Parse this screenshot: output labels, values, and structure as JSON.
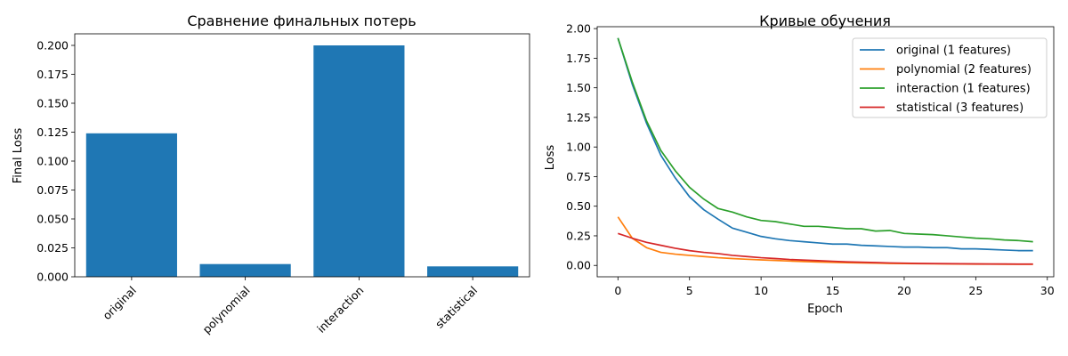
{
  "colors": {
    "bar": "#1f77b4",
    "series": [
      "#1f77b4",
      "#ff7f0e",
      "#2ca02c",
      "#d62728"
    ]
  },
  "chart_data": [
    {
      "type": "bar",
      "title": "Сравнение финальных потерь",
      "xlabel": "",
      "ylabel": "Final Loss",
      "categories": [
        "original",
        "polynomial",
        "interaction",
        "statistical"
      ],
      "values": [
        0.124,
        0.011,
        0.2,
        0.009
      ],
      "ylim": [
        0,
        0.21
      ],
      "yticks": [
        "0.000",
        "0.025",
        "0.050",
        "0.075",
        "0.100",
        "0.125",
        "0.150",
        "0.175",
        "0.200"
      ],
      "xtick_rotation": "45°",
      "grid": false
    },
    {
      "type": "line",
      "title": "Кривые обучения",
      "xlabel": "Epoch",
      "ylabel": "Loss",
      "xlim": [
        -1.45,
        30.45
      ],
      "ylim": [
        -0.096,
        2.016
      ],
      "xticks": [
        "0",
        "5",
        "10",
        "15",
        "20",
        "25",
        "30"
      ],
      "yticks": [
        "0.00",
        "0.25",
        "0.50",
        "0.75",
        "1.00",
        "1.25",
        "1.50",
        "1.75",
        "2.00"
      ],
      "legend_position": "top-right",
      "grid": false,
      "x": [
        0,
        1,
        2,
        3,
        4,
        5,
        6,
        7,
        8,
        9,
        10,
        11,
        12,
        13,
        14,
        15,
        16,
        17,
        18,
        19,
        20,
        21,
        22,
        23,
        24,
        25,
        26,
        27,
        28,
        29
      ],
      "series": [
        {
          "name": "original (1 features)",
          "values": [
            1.92,
            1.53,
            1.2,
            0.93,
            0.74,
            0.58,
            0.47,
            0.39,
            0.315,
            0.28,
            0.245,
            0.225,
            0.21,
            0.2,
            0.19,
            0.18,
            0.18,
            0.17,
            0.165,
            0.16,
            0.155,
            0.155,
            0.15,
            0.15,
            0.14,
            0.14,
            0.135,
            0.13,
            0.125,
            0.125
          ]
        },
        {
          "name": "polynomial (2 features)",
          "values": [
            0.41,
            0.23,
            0.15,
            0.11,
            0.095,
            0.085,
            0.075,
            0.065,
            0.058,
            0.052,
            0.047,
            0.042,
            0.037,
            0.033,
            0.029,
            0.026,
            0.023,
            0.021,
            0.019,
            0.017,
            0.016,
            0.015,
            0.014,
            0.013,
            0.012,
            0.011,
            0.011,
            0.01,
            0.01,
            0.01
          ]
        },
        {
          "name": "interaction (1 features)",
          "values": [
            1.92,
            1.55,
            1.22,
            0.97,
            0.8,
            0.66,
            0.56,
            0.48,
            0.45,
            0.41,
            0.38,
            0.37,
            0.35,
            0.33,
            0.33,
            0.32,
            0.31,
            0.31,
            0.29,
            0.295,
            0.27,
            0.265,
            0.26,
            0.25,
            0.24,
            0.23,
            0.225,
            0.215,
            0.21,
            0.2
          ]
        },
        {
          "name": "statistical (3 features)",
          "values": [
            0.27,
            0.23,
            0.195,
            0.17,
            0.145,
            0.125,
            0.11,
            0.1,
            0.085,
            0.075,
            0.065,
            0.058,
            0.05,
            0.045,
            0.04,
            0.035,
            0.03,
            0.027,
            0.024,
            0.021,
            0.019,
            0.017,
            0.016,
            0.015,
            0.014,
            0.013,
            0.012,
            0.012,
            0.011,
            0.011
          ]
        }
      ]
    }
  ]
}
